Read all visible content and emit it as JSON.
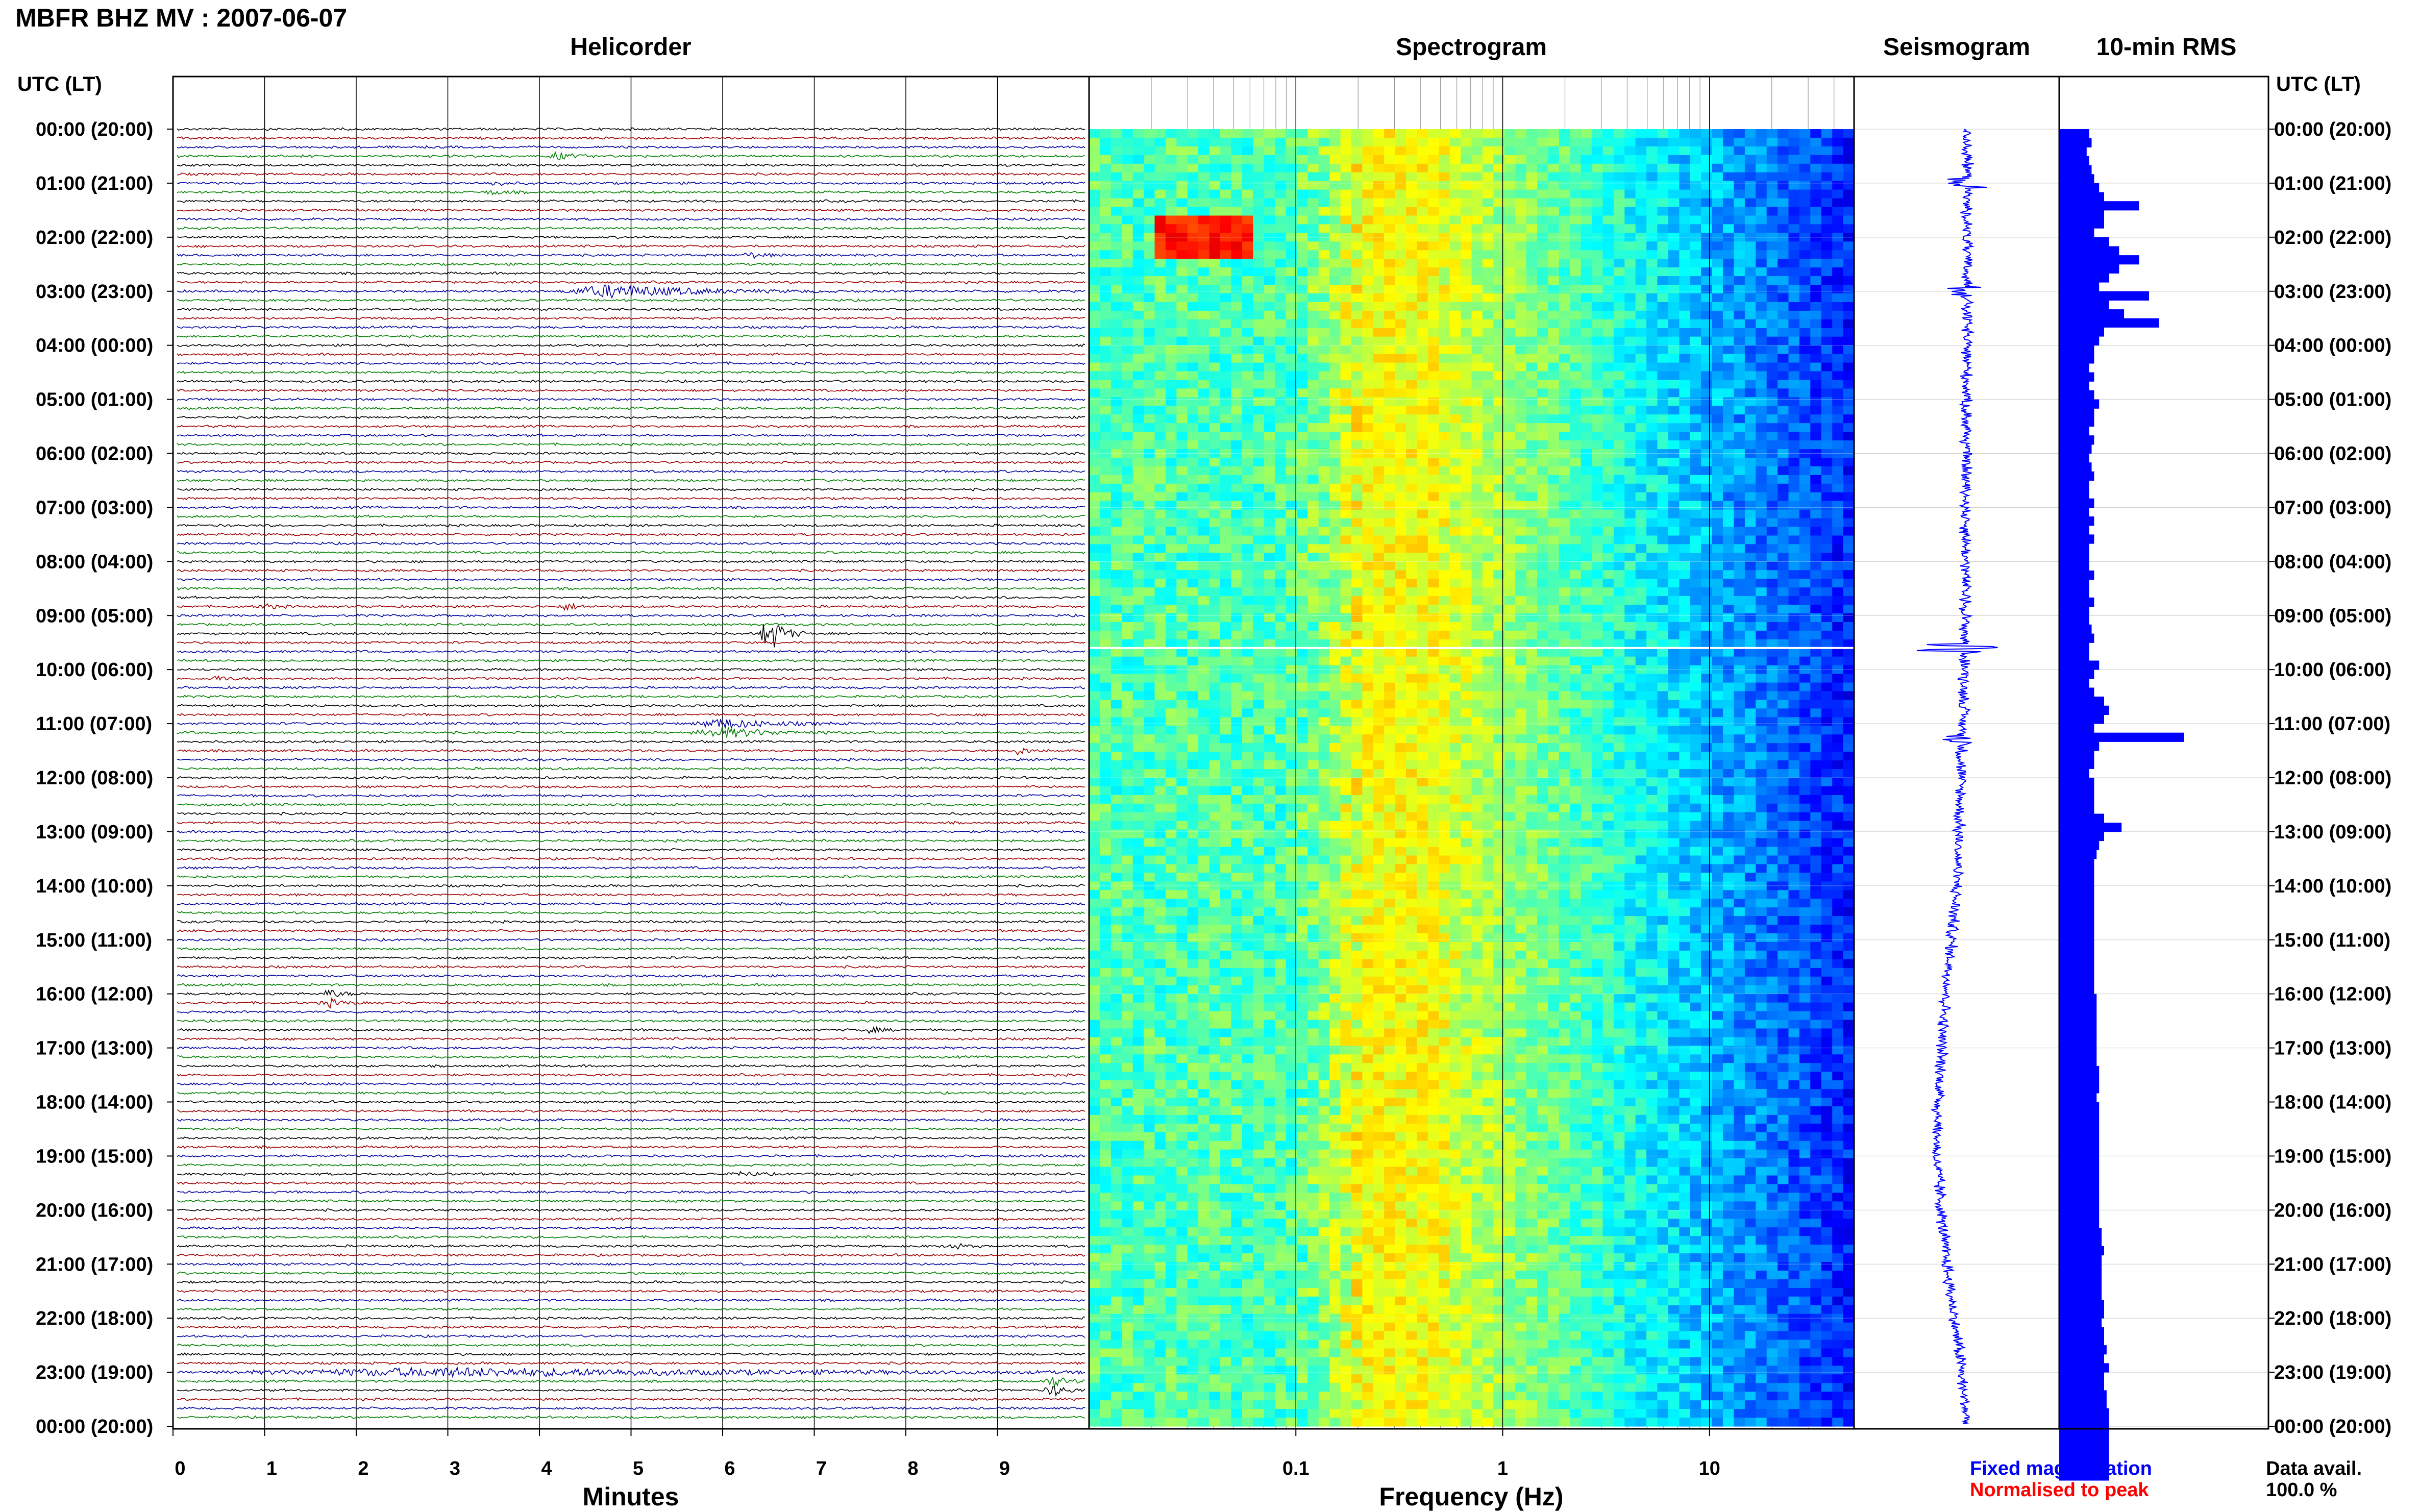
{
  "header": {
    "station_title": "MBFR BHZ MV : 2007-06-07",
    "time_axis_header_left": "UTC (LT)",
    "time_axis_header_right": "UTC (LT)"
  },
  "panels": {
    "helicorder_title": "Helicorder",
    "spectrogram_title": "Spectrogram",
    "seismogram_title": "Seismogram",
    "rms_title": "10-min RMS"
  },
  "legend": {
    "fixed_magnification": "Fixed magnification",
    "normalised_to_peak": "Normalised to peak",
    "data_avail_label": "Data avail.",
    "data_avail_value": "100.0 %"
  },
  "colors": {
    "trace_black": "#000000",
    "trace_red": "#a00000",
    "trace_blue": "#0000a0",
    "trace_green": "#008000",
    "rms_fill": "#0000ff",
    "fixed_magnification_text": "#0000ff",
    "normalised_text": "#ff0000",
    "spectrogram_low": "#00008c",
    "spectrogram_high": "#ffff00"
  },
  "chart_data": [
    {
      "type": "line",
      "name": "helicorder",
      "xlabel": "Minutes",
      "xlim": [
        0,
        10
      ],
      "x_ticks": [
        "0",
        "1",
        "2",
        "3",
        "4",
        "5",
        "6",
        "7",
        "8",
        "9"
      ],
      "time_labels": [
        "00:00 (20:00)",
        "01:00 (21:00)",
        "02:00 (22:00)",
        "03:00 (23:00)",
        "04:00 (00:00)",
        "05:00 (01:00)",
        "06:00 (02:00)",
        "07:00 (03:00)",
        "08:00 (04:00)",
        "09:00 (05:00)",
        "10:00 (06:00)",
        "11:00 (07:00)",
        "12:00 (08:00)",
        "13:00 (09:00)",
        "14:00 (10:00)",
        "15:00 (11:00)",
        "16:00 (12:00)",
        "17:00 (13:00)",
        "18:00 (14:00)",
        "19:00 (15:00)",
        "20:00 (16:00)",
        "21:00 (17:00)",
        "22:00 (18:00)",
        "23:00 (19:00)",
        "00:00 (20:00)"
      ],
      "traces_per_hour": 6,
      "trace_color_cycle": [
        "black",
        "red",
        "blue",
        "green"
      ],
      "events": [
        {
          "hour": 0.5,
          "minute": 4.2,
          "amplitude": 0.5
        },
        {
          "hour": 1.1,
          "minute": 3.5,
          "amplitude": 0.3
        },
        {
          "hour": 2.3,
          "minute": 6.3,
          "amplitude": 0.35
        },
        {
          "hour": 2.95,
          "minute": 4.8,
          "amplitude": 0.8,
          "duration": 2.0
        },
        {
          "hour": 8.8,
          "minute": 1.0,
          "amplitude": 0.3
        },
        {
          "hour": 8.85,
          "minute": 4.3,
          "amplitude": 0.4
        },
        {
          "hour": 9.35,
          "minute": 6.5,
          "amplitude": 2.5
        },
        {
          "hour": 10.2,
          "minute": 0.5,
          "amplitude": 0.3
        },
        {
          "hour": 11.1,
          "minute": 6.0,
          "amplitude": 0.6,
          "duration": 1.2
        },
        {
          "hour": 11.5,
          "minute": 9.2,
          "amplitude": 0.5
        },
        {
          "hour": 16.1,
          "minute": 1.7,
          "amplitude": 0.5
        },
        {
          "hour": 16.7,
          "minute": 7.6,
          "amplitude": 0.35
        },
        {
          "hour": 19.3,
          "minute": 6.2,
          "amplitude": 0.35
        },
        {
          "hour": 20.7,
          "minute": 8.5,
          "amplitude": 0.35
        },
        {
          "hour": 22.95,
          "minute": 3.0,
          "amplitude": 0.5,
          "duration": 9.0
        },
        {
          "hour": 23.25,
          "minute": 9.6,
          "amplitude": 0.7
        }
      ]
    },
    {
      "type": "heatmap",
      "name": "spectrogram",
      "xlabel": "Frequency (Hz)",
      "xscale": "log",
      "xlim": [
        0.01,
        50
      ],
      "x_tick_labels": [
        {
          "value": 0.1,
          "label": "0.1"
        },
        {
          "value": 1,
          "label": "1"
        },
        {
          "value": 10,
          "label": "10"
        }
      ],
      "ylim_hours": [
        0,
        24
      ],
      "peak_band_hz": [
        0.2,
        0.5
      ],
      "bright_event": {
        "hour": 2.0,
        "freq_range": [
          0.02,
          0.06
        ]
      },
      "gap_hour": 9.6
    },
    {
      "type": "line",
      "name": "seismogram",
      "ylim_hours": [
        0,
        24
      ],
      "drift": [
        {
          "hour": 0,
          "offset": 0.0
        },
        {
          "hour": 4,
          "offset": 0.0
        },
        {
          "hour": 10,
          "offset": -0.02
        },
        {
          "hour": 14,
          "offset": -0.1
        },
        {
          "hour": 17,
          "offset": -0.25
        },
        {
          "hour": 19,
          "offset": -0.3
        },
        {
          "hour": 21,
          "offset": -0.2
        },
        {
          "hour": 23,
          "offset": -0.05
        },
        {
          "hour": 24,
          "offset": 0.0
        }
      ],
      "spikes": [
        {
          "hour": 9.6,
          "amplitude": 1.0
        },
        {
          "hour": 1.0,
          "amplitude": 0.3
        },
        {
          "hour": 3.0,
          "amplitude": 0.3
        },
        {
          "hour": 11.3,
          "amplitude": 0.3
        }
      ]
    },
    {
      "type": "bar",
      "name": "10-min RMS",
      "orientation": "horizontal",
      "ylim_hours": [
        0,
        24
      ],
      "values": [
        0.6,
        0.65,
        0.55,
        0.6,
        0.65,
        0.7,
        0.8,
        0.9,
        1.6,
        0.9,
        0.9,
        0.7,
        1.0,
        1.2,
        1.6,
        1.2,
        1.0,
        0.8,
        1.8,
        1.0,
        1.3,
        2.0,
        0.9,
        0.8,
        0.7,
        0.7,
        0.6,
        0.7,
        0.6,
        0.7,
        0.8,
        0.7,
        0.7,
        0.6,
        0.7,
        0.65,
        0.6,
        0.65,
        0.7,
        0.6,
        0.6,
        0.7,
        0.6,
        0.7,
        0.6,
        0.7,
        0.6,
        0.6,
        0.6,
        0.7,
        0.6,
        0.6,
        0.7,
        0.6,
        0.6,
        0.65,
        0.7,
        0.6,
        0.6,
        0.8,
        0.7,
        0.6,
        0.7,
        0.9,
        1.0,
        0.9,
        0.7,
        2.5,
        0.8,
        0.7,
        0.7,
        0.6,
        0.7,
        0.7,
        0.7,
        0.7,
        0.9,
        1.25,
        0.9,
        0.8,
        0.75,
        0.7,
        0.7,
        0.7,
        0.7,
        0.7,
        0.7,
        0.7,
        0.7,
        0.7,
        0.7,
        0.7,
        0.7,
        0.7,
        0.7,
        0.7,
        0.75,
        0.75,
        0.75,
        0.75,
        0.75,
        0.75,
        0.75,
        0.75,
        0.8,
        0.8,
        0.8,
        0.75,
        0.8,
        0.8,
        0.8,
        0.8,
        0.8,
        0.8,
        0.8,
        0.8,
        0.8,
        0.8,
        0.8,
        0.8,
        0.8,
        0.8,
        0.85,
        0.85,
        0.9,
        0.85,
        0.85,
        0.85,
        0.85,
        0.85,
        0.9,
        0.9,
        0.85,
        0.9,
        0.9,
        0.95,
        0.9,
        1.0,
        0.9,
        0.9,
        0.95,
        0.95,
        1.0,
        1.0,
        1.0,
        1.0,
        1.0,
        1.0,
        1.0,
        1.0
      ]
    }
  ]
}
